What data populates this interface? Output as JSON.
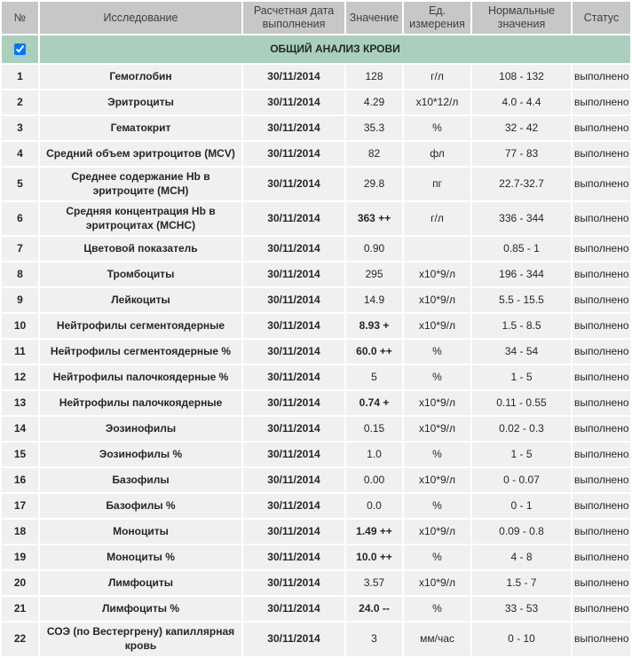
{
  "colors": {
    "header_bg": "#c6c8c7",
    "section_bg": "#aad0bd",
    "row_bg": "#f0f0f0"
  },
  "table": {
    "columns": [
      "№",
      "Исследование",
      "Расчетная дата выполнения",
      "Значение",
      "Ед. измерения",
      "Нормальные значения",
      "Статус"
    ],
    "section": {
      "title": "ОБЩИЙ АНАЛИЗ КРОВИ",
      "checked": true
    },
    "rows": [
      {
        "num": "1",
        "name": "Гемоглобин",
        "date": "30/11/2014",
        "value": "128",
        "flag": false,
        "unit": "г/л",
        "normal": "108 - 132",
        "status": "выполнено"
      },
      {
        "num": "2",
        "name": "Эритроциты",
        "date": "30/11/2014",
        "value": "4.29",
        "flag": false,
        "unit": "х10*12/л",
        "normal": "4.0 - 4.4",
        "status": "выполнено"
      },
      {
        "num": "3",
        "name": "Гематокрит",
        "date": "30/11/2014",
        "value": "35.3",
        "flag": false,
        "unit": "%",
        "normal": "32 - 42",
        "status": "выполнено"
      },
      {
        "num": "4",
        "name": "Средний объем эритроцитов (MCV)",
        "date": "30/11/2014",
        "value": "82",
        "flag": false,
        "unit": "фл",
        "normal": "77 - 83",
        "status": "выполнено"
      },
      {
        "num": "5",
        "name": "Среднее содержание Hb в эритроците (MCH)",
        "date": "30/11/2014",
        "value": "29.8",
        "flag": false,
        "unit": "пг",
        "normal": "22.7-32.7",
        "status": "выполнено"
      },
      {
        "num": "6",
        "name": "Средняя концентрация Hb в эритроцитах (MCHC)",
        "date": "30/11/2014",
        "value": "363 ++",
        "flag": true,
        "unit": "г/л",
        "normal": "336 - 344",
        "status": "выполнено"
      },
      {
        "num": "7",
        "name": "Цветовой показатель",
        "date": "30/11/2014",
        "value": "0.90",
        "flag": false,
        "unit": "",
        "normal": "0.85 - 1",
        "status": "выполнено"
      },
      {
        "num": "8",
        "name": "Тромбоциты",
        "date": "30/11/2014",
        "value": "295",
        "flag": false,
        "unit": "х10*9/л",
        "normal": "196 - 344",
        "status": "выполнено"
      },
      {
        "num": "9",
        "name": "Лейкоциты",
        "date": "30/11/2014",
        "value": "14.9",
        "flag": false,
        "unit": "х10*9/л",
        "normal": "5.5 - 15.5",
        "status": "выполнено"
      },
      {
        "num": "10",
        "name": "Нейтрофилы сегментоядерные",
        "date": "30/11/2014",
        "value": "8.93 +",
        "flag": true,
        "unit": "х10*9/л",
        "normal": "1.5 - 8.5",
        "status": "выполнено"
      },
      {
        "num": "11",
        "name": "Нейтрофилы сегментоядерные %",
        "date": "30/11/2014",
        "value": "60.0 ++",
        "flag": true,
        "unit": "%",
        "normal": "34 - 54",
        "status": "выполнено"
      },
      {
        "num": "12",
        "name": "Нейтрофилы палочкоядерные %",
        "date": "30/11/2014",
        "value": "5",
        "flag": false,
        "unit": "%",
        "normal": "1 - 5",
        "status": "выполнено"
      },
      {
        "num": "13",
        "name": "Нейтрофилы палочкоядерные",
        "date": "30/11/2014",
        "value": "0.74 +",
        "flag": true,
        "unit": "х10*9/л",
        "normal": "0.11 - 0.55",
        "status": "выполнено"
      },
      {
        "num": "14",
        "name": "Эозинофилы",
        "date": "30/11/2014",
        "value": "0.15",
        "flag": false,
        "unit": "х10*9/л",
        "normal": "0.02 - 0.3",
        "status": "выполнено"
      },
      {
        "num": "15",
        "name": "Эозинофилы %",
        "date": "30/11/2014",
        "value": "1.0",
        "flag": false,
        "unit": "%",
        "normal": "1 - 5",
        "status": "выполнено"
      },
      {
        "num": "16",
        "name": "Базофилы",
        "date": "30/11/2014",
        "value": "0.00",
        "flag": false,
        "unit": "х10*9/л",
        "normal": "0 - 0.07",
        "status": "выполнено"
      },
      {
        "num": "17",
        "name": "Базофилы %",
        "date": "30/11/2014",
        "value": "0.0",
        "flag": false,
        "unit": "%",
        "normal": "0 - 1",
        "status": "выполнено"
      },
      {
        "num": "18",
        "name": "Моноциты",
        "date": "30/11/2014",
        "value": "1.49 ++",
        "flag": true,
        "unit": "х10*9/л",
        "normal": "0.09 - 0.8",
        "status": "выполнено"
      },
      {
        "num": "19",
        "name": "Моноциты %",
        "date": "30/11/2014",
        "value": "10.0 ++",
        "flag": true,
        "unit": "%",
        "normal": "4 - 8",
        "status": "выполнено"
      },
      {
        "num": "20",
        "name": "Лимфоциты",
        "date": "30/11/2014",
        "value": "3.57",
        "flag": false,
        "unit": "х10*9/л",
        "normal": "1.5 - 7",
        "status": "выполнено"
      },
      {
        "num": "21",
        "name": "Лимфоциты %",
        "date": "30/11/2014",
        "value": "24.0 --",
        "flag": true,
        "unit": "%",
        "normal": "33 - 53",
        "status": "выполнено"
      },
      {
        "num": "22",
        "name": "СОЭ (по Вестергрену) капиллярная кровь",
        "date": "30/11/2014",
        "value": "3",
        "flag": false,
        "unit": "мм/час",
        "normal": "0 - 10",
        "status": "выполнено"
      }
    ]
  }
}
